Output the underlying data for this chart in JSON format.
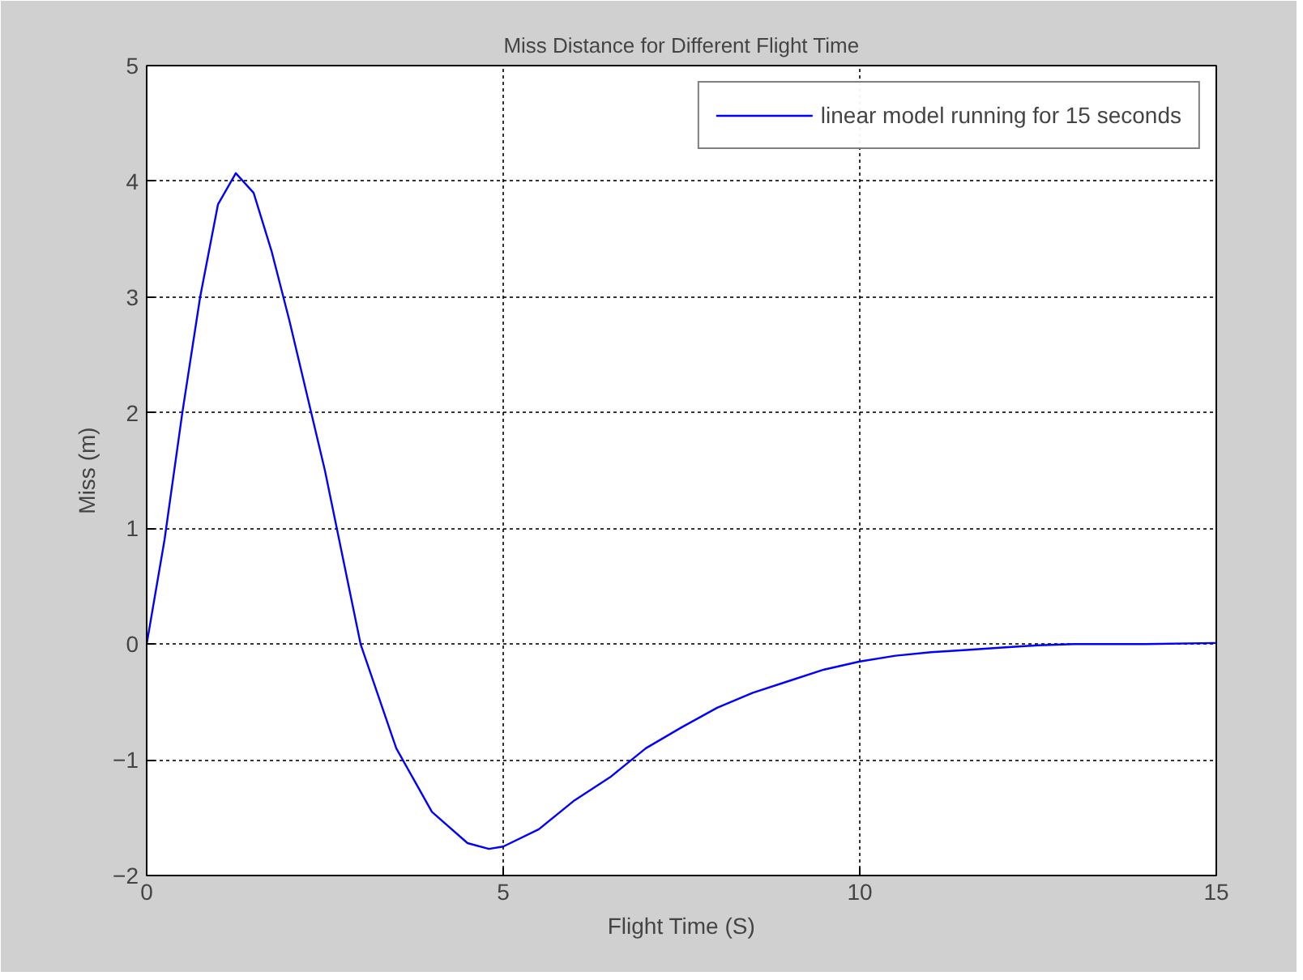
{
  "chart_data": {
    "type": "line",
    "title": "Miss Distance for Different Flight Time",
    "xlabel": "Flight Time (S)",
    "ylabel": "Miss (m)",
    "xlim": [
      0,
      15
    ],
    "ylim": [
      -2,
      5
    ],
    "xticks": [
      0,
      5,
      10,
      15
    ],
    "yticks": [
      -2,
      -1,
      0,
      1,
      2,
      3,
      4,
      5
    ],
    "grid": true,
    "legend": "top right",
    "line_style": "solid",
    "series": [
      {
        "name": "linear model running for 15 seconds",
        "color": "#0000ff",
        "x": [
          0,
          0.25,
          0.5,
          0.75,
          1.0,
          1.25,
          1.5,
          1.75,
          2.0,
          2.5,
          3.0,
          3.5,
          4.0,
          4.5,
          4.8,
          5.0,
          5.5,
          6.0,
          6.5,
          7.0,
          7.5,
          8.0,
          8.5,
          9.0,
          9.5,
          10.0,
          10.5,
          11.0,
          11.5,
          12.0,
          12.5,
          13.0,
          14.0,
          15.0
        ],
        "values": [
          0,
          0.9,
          2.0,
          3.0,
          3.8,
          4.07,
          3.9,
          3.4,
          2.8,
          1.5,
          0.0,
          -0.9,
          -1.45,
          -1.72,
          -1.77,
          -1.75,
          -1.6,
          -1.35,
          -1.15,
          -0.9,
          -0.72,
          -0.55,
          -0.42,
          -0.32,
          -0.22,
          -0.15,
          -0.1,
          -0.07,
          -0.05,
          -0.03,
          -0.01,
          0,
          0,
          0.01
        ]
      }
    ]
  }
}
